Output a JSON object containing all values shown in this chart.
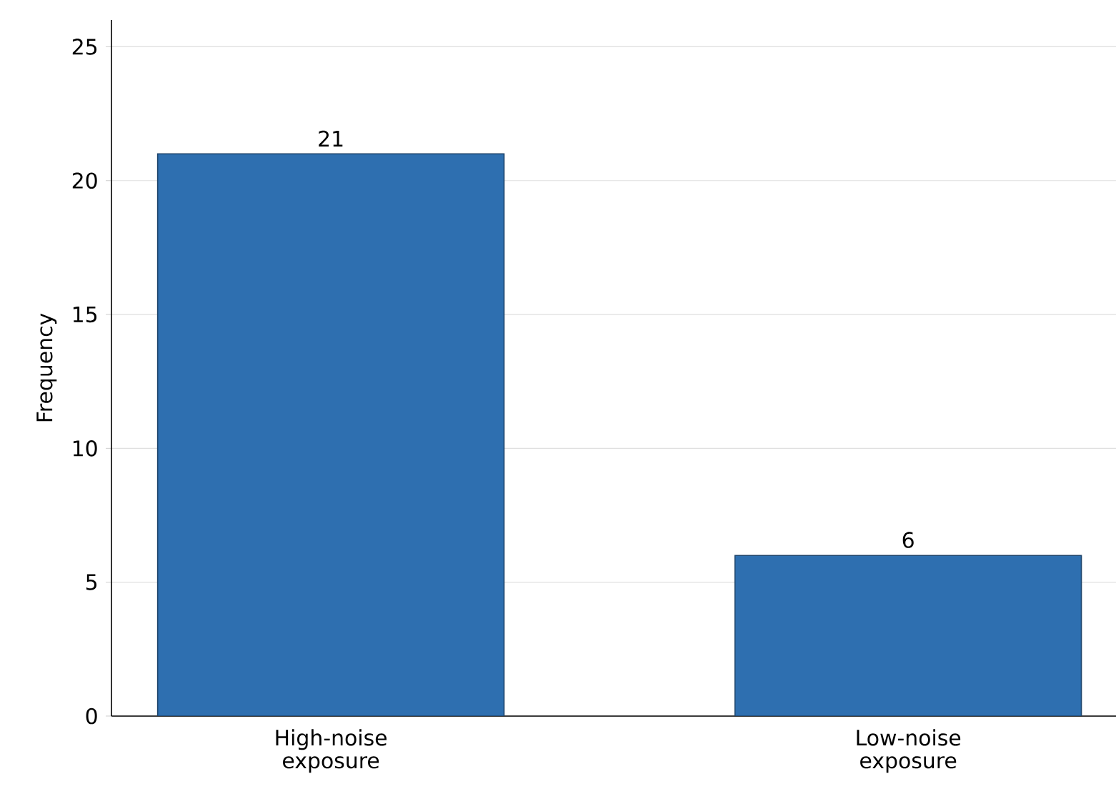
{
  "chart_data": {
    "type": "bar",
    "ylabel": "Frequency",
    "categories": [
      "High-noise exposure",
      "Low-noise exposure"
    ],
    "values": [
      21,
      6
    ],
    "color": "#2e6fb0",
    "ylim": [
      0,
      26
    ],
    "yticks": [
      0,
      5,
      10,
      15,
      20,
      25
    ],
    "grid": "y",
    "data_labels": true
  }
}
